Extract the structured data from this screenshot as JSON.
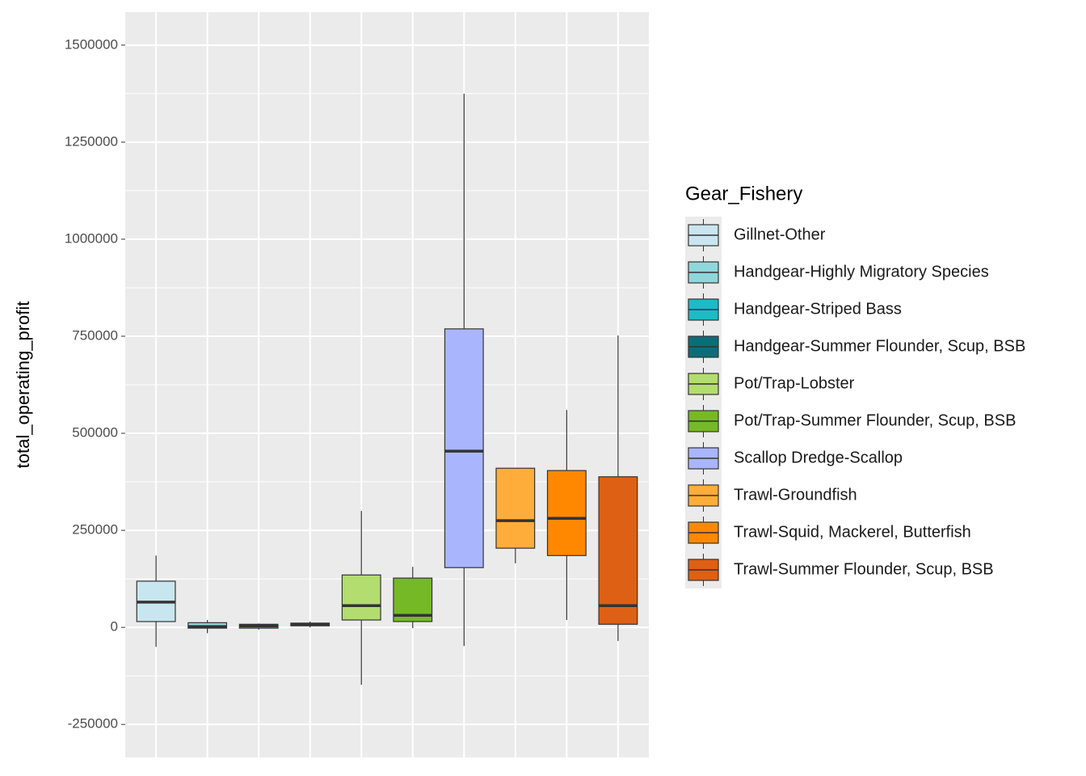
{
  "chart_data": {
    "type": "boxplot",
    "y_label": "total_operating_profit",
    "legend_title": "Gear_Fishery",
    "categories": [
      "Gillnet-Other",
      "Handgear-Highly Migratory Species",
      "Handgear-Striped Bass",
      "Handgear-Summer Flounder, Scup, BSB",
      "Pot/Trap-Lobster",
      "Pot/Trap-Summer Flounder, Scup, BSB",
      "Scallop Dredge-Scallop",
      "Trawl-Groundfish",
      "Trawl-Squid, Mackerel, Butterfish",
      "Trawl-Summer Flounder, Scup, BSB"
    ],
    "colors": [
      "#C8E6F0",
      "#8ED8DC",
      "#1ABCC8",
      "#0A6E78",
      "#B3DD6E",
      "#76B927",
      "#A9B6FE",
      "#FFAD3A",
      "#FF8800",
      "#DE6014"
    ],
    "min": [
      -50000,
      -15000,
      -6000,
      0,
      -148000,
      -2000,
      -48000,
      165000,
      19000,
      -35000
    ],
    "q1": [
      15000,
      -2000,
      -2000,
      4000,
      19000,
      15000,
      154000,
      204000,
      185000,
      8000
    ],
    "median": [
      65000,
      2000,
      4000,
      8000,
      56000,
      31000,
      454000,
      275000,
      281000,
      56000
    ],
    "q3": [
      119000,
      12000,
      8000,
      11000,
      135000,
      127000,
      769000,
      410000,
      404000,
      388000
    ],
    "max": [
      185000,
      19000,
      10000,
      15000,
      300000,
      156000,
      1375000,
      410000,
      560000,
      752000
    ],
    "ylim": [
      -335000,
      1585000
    ],
    "yticks": [
      -250000,
      0,
      250000,
      500000,
      750000,
      1000000,
      1250000,
      1500000
    ],
    "grid": true,
    "legend_position": "right"
  }
}
